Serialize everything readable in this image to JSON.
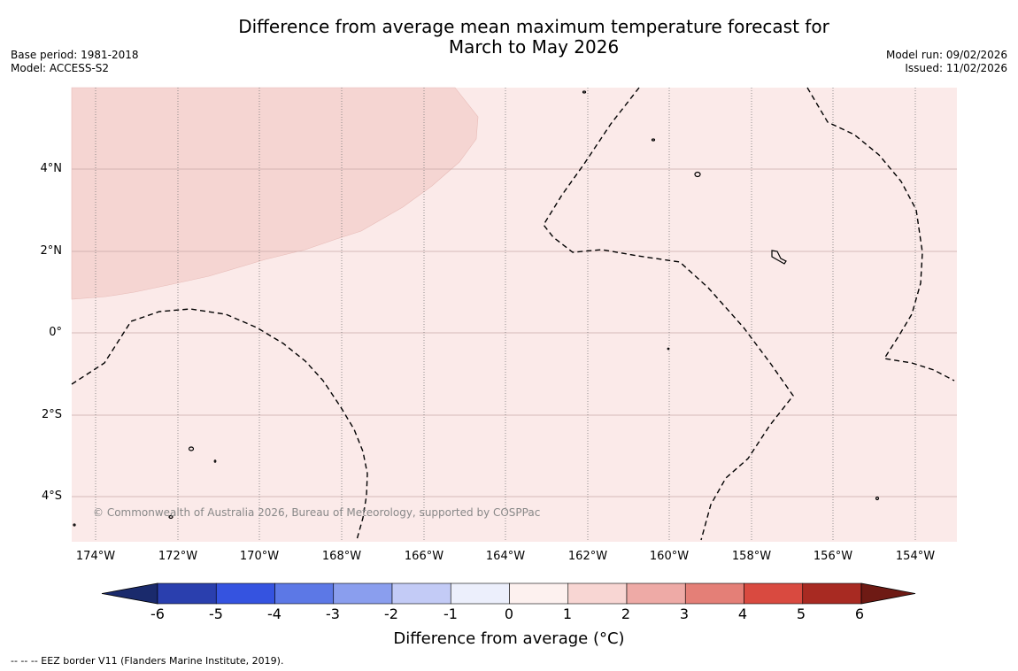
{
  "header": {
    "title_line1": "Difference from average mean maximum temperature forecast for",
    "title_line2": "March to May 2026",
    "base_period": "Base period: 1981-2018",
    "model": "Model: ACCESS-S2",
    "model_run": "Model run: 09/02/2026",
    "issued": "Issued: 11/02/2026"
  },
  "map": {
    "copyright": "© Commonwealth of Australia 2026, Bureau of Meteorology, supported by COSPPac",
    "lat_labels": [
      "4°N",
      "2°N",
      "0°",
      "2°S",
      "4°S"
    ],
    "lon_labels": [
      "174°W",
      "172°W",
      "170°W",
      "168°W",
      "166°W",
      "164°W",
      "162°W",
      "160°W",
      "158°W",
      "156°W",
      "154°W"
    ],
    "background_color": "#fbeae9",
    "warm_region_color": "#f5d5d2"
  },
  "colorbar": {
    "title": "Difference from average (°C)",
    "ticks": [
      "-6",
      "-5",
      "-4",
      "-3",
      "-2",
      "-1",
      "0",
      "1",
      "2",
      "3",
      "4",
      "5",
      "6"
    ],
    "colors": [
      "#1a2a6c",
      "#2a3fae",
      "#3553e0",
      "#5c78e6",
      "#8a9eee",
      "#c3cbf6",
      "#eceffc",
      "#fdf1ef",
      "#f8d6d3",
      "#eeaaa6",
      "#e47f77",
      "#d94a40",
      "#a82a22",
      "#6e1a14"
    ]
  },
  "footer": {
    "eez_note": "-- -- -- EEZ border V11 (Flanders Marine Institute, 2019)."
  }
}
